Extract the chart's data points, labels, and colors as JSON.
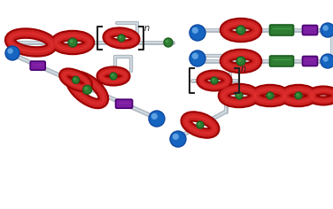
{
  "background_color": "#ffffff",
  "dark_red": "#9B0000",
  "red": "#CC2222",
  "red_mid": "#E03030",
  "green": "#2E7D32",
  "green_light": "#4CAF50",
  "blue": "#1565C0",
  "blue_dark": "#0D47A1",
  "purple": "#7B1FA2",
  "purple_light": "#9C27B0",
  "gray_rod": "#B0B8C0",
  "gray_rod_light": "#D8E0E8",
  "gray_rod_dark": "#8090A0",
  "white": "#FFFFFF",
  "bracket_color": "#222222",
  "figsize": [
    3.76,
    2.36
  ],
  "dpi": 100
}
